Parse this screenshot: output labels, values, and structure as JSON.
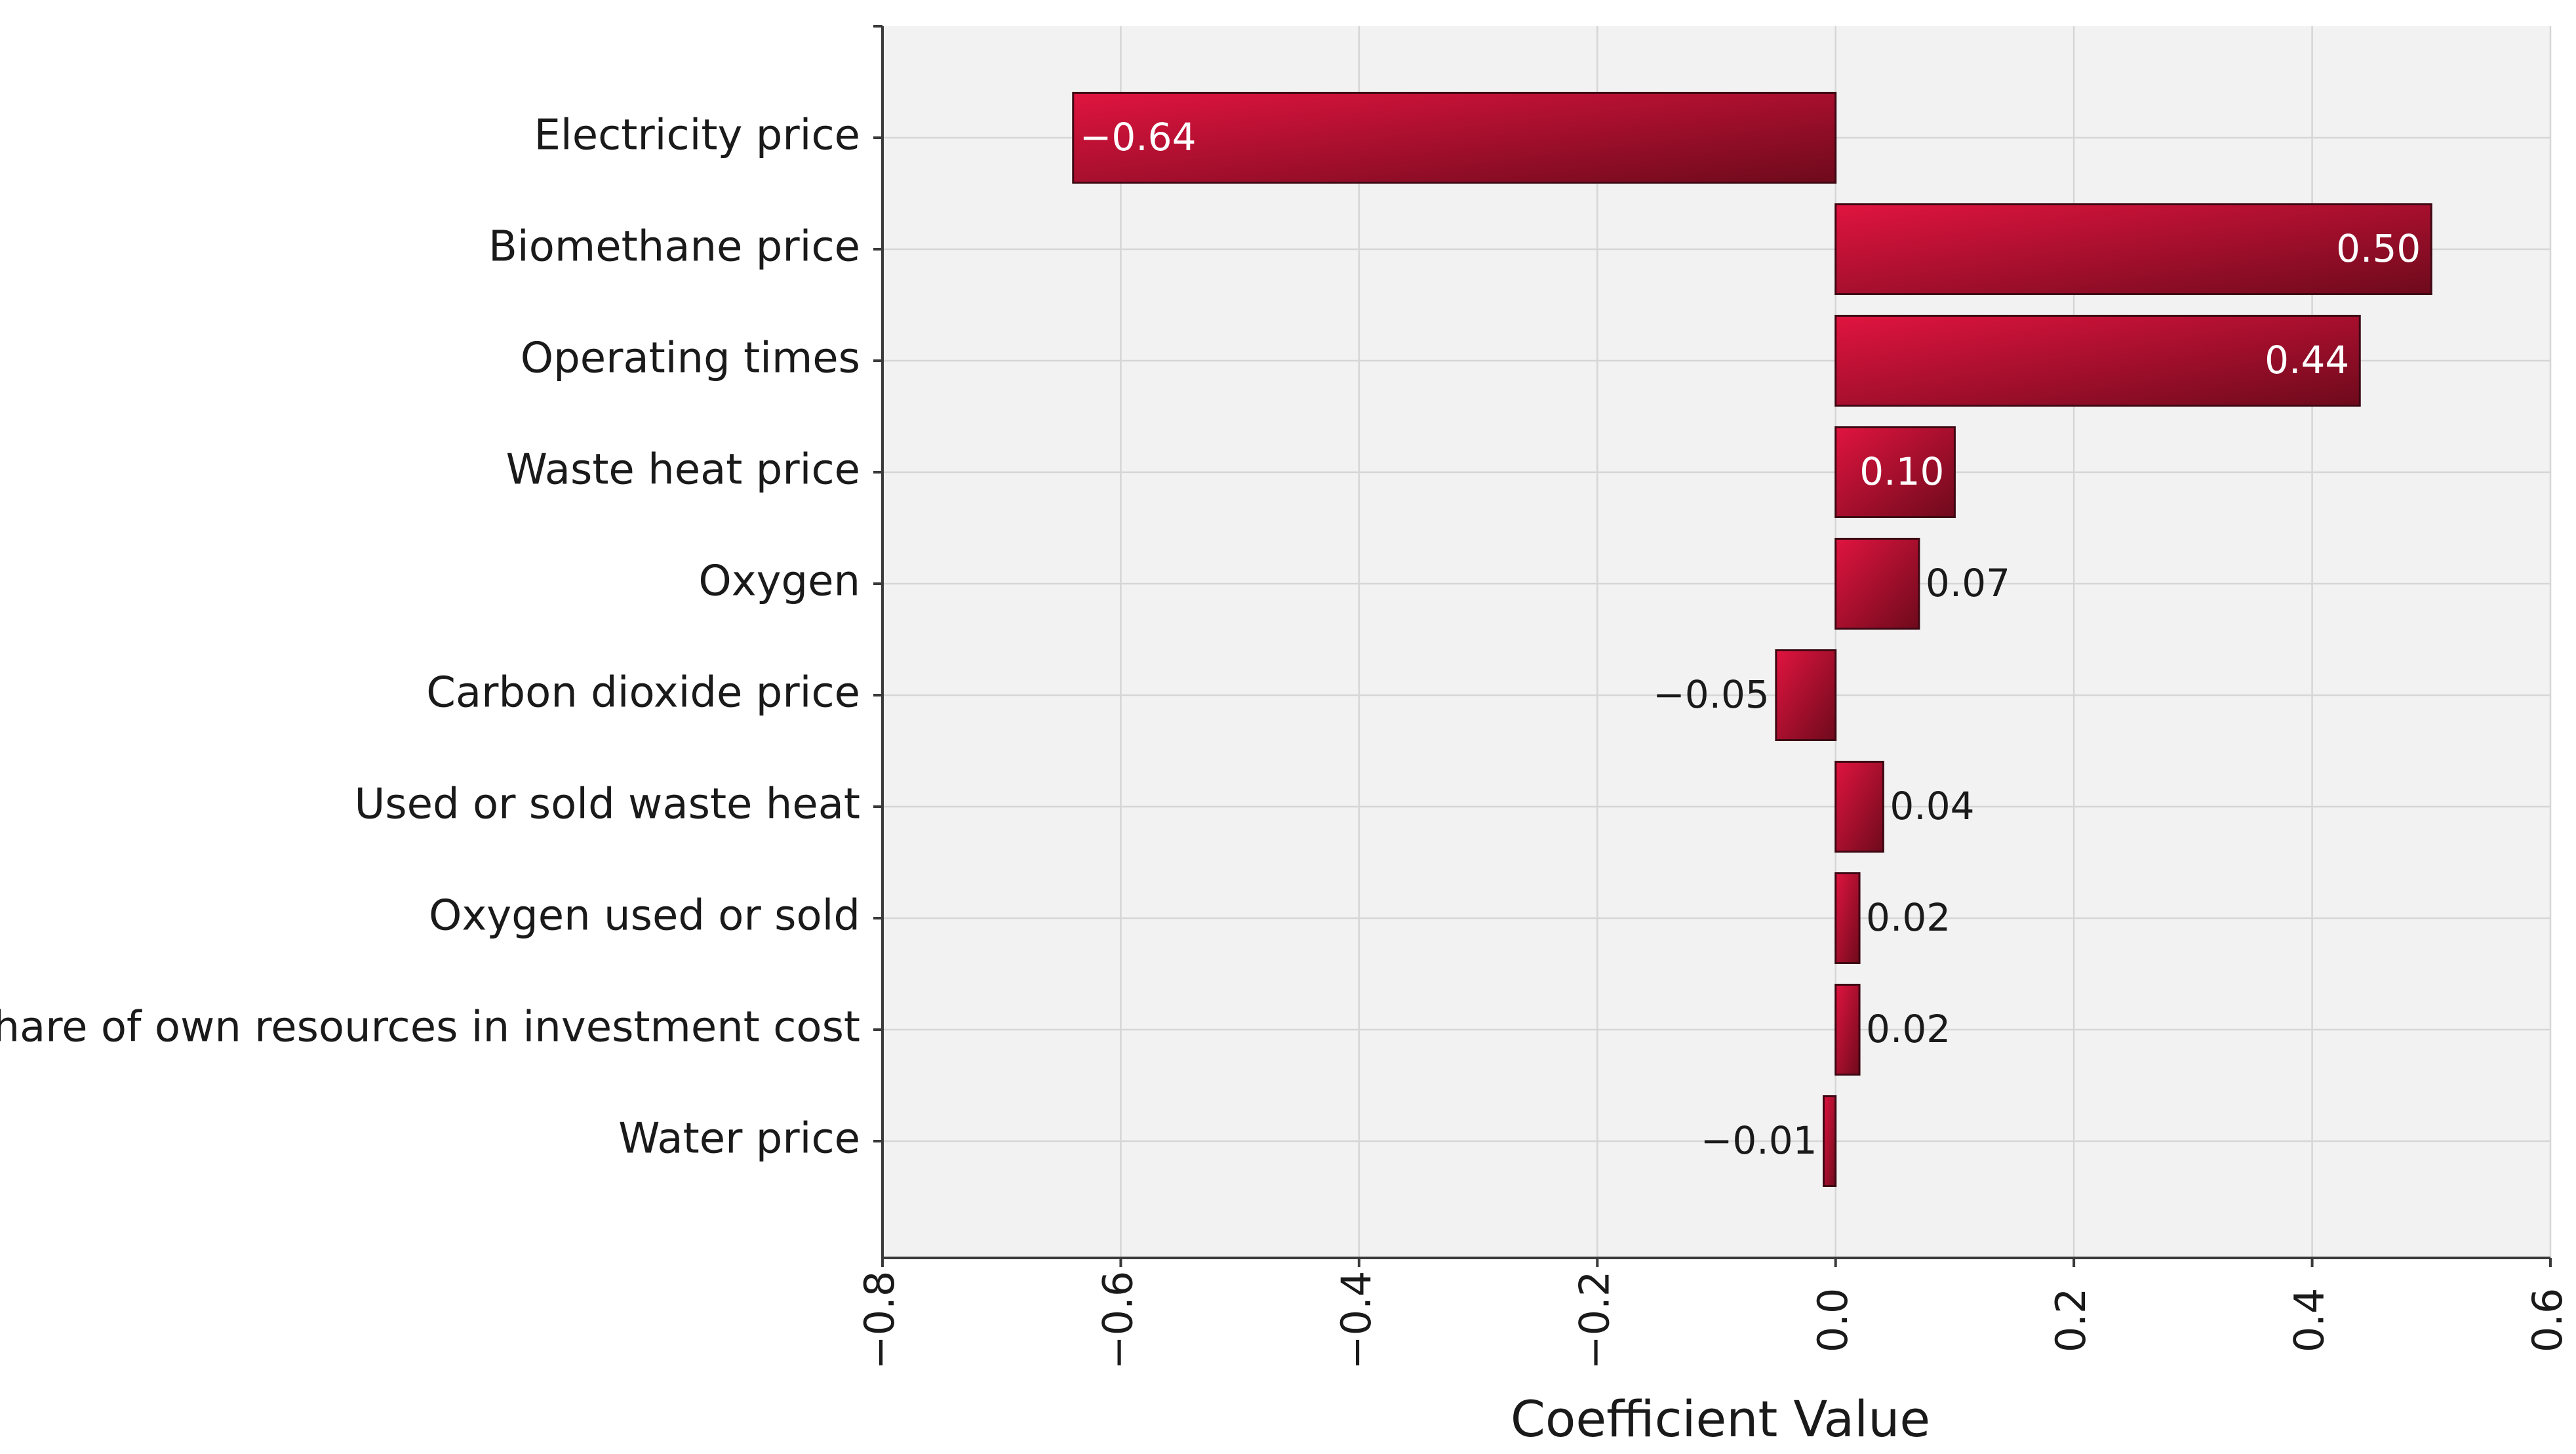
{
  "chart_data": {
    "type": "bar",
    "orientation": "horizontal",
    "title": "",
    "xlabel": "Coefficient Value",
    "ylabel": "",
    "xlim": [
      -0.8,
      0.6
    ],
    "xticks": [
      -0.8,
      -0.6,
      -0.4,
      -0.2,
      0.0,
      0.2,
      0.4,
      0.6
    ],
    "xtick_labels": [
      "−0.8",
      "−0.6",
      "−0.4",
      "−0.2",
      "0.0",
      "0.2",
      "0.4",
      "0.6"
    ],
    "grid": true,
    "categories": [
      "Electricity price",
      "Biomethane price",
      "Operating times",
      "Waste heat price",
      "Oxygen",
      "Carbon dioxide price",
      "Used or sold waste heat",
      "Oxygen used or sold",
      "Share of own resources in investment cost",
      "Water price"
    ],
    "values": [
      -0.64,
      0.5,
      0.44,
      0.1,
      0.07,
      -0.05,
      0.04,
      0.02,
      0.02,
      -0.01
    ],
    "value_labels": [
      "−0.64",
      "0.50",
      "0.44",
      "0.10",
      "0.07",
      "−0.05",
      "0.04",
      "0.02",
      "0.02",
      "−0.01"
    ],
    "colors": {
      "bar_light": "#e0143f",
      "bar_dark": "#6e0a1c",
      "plot_background": "#f2f2f2"
    }
  }
}
